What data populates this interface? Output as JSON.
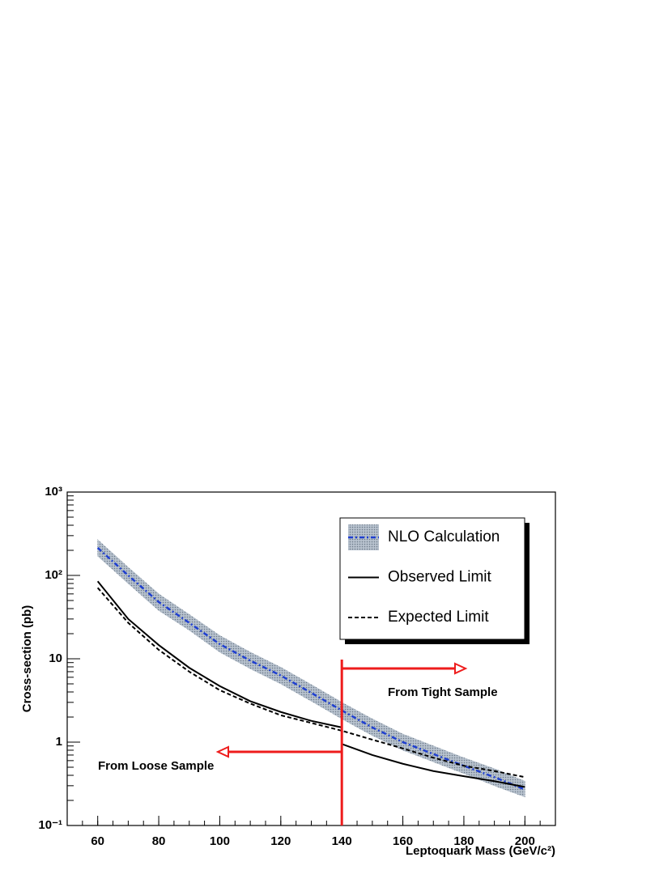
{
  "chart_data": {
    "type": "line",
    "xlabel": "Leptoquark Mass (GeV/c²)",
    "ylabel": "Cross-section (pb)",
    "xlim": [
      50,
      210
    ],
    "ylim": [
      0.1,
      1000
    ],
    "log_y": true,
    "xticks": [
      60,
      80,
      100,
      120,
      140,
      160,
      180,
      200
    ],
    "yticks": [
      {
        "value": 0.1,
        "label": "10⁻¹"
      },
      1,
      10,
      {
        "value": 100,
        "label": "10²"
      },
      {
        "value": 1000,
        "label": "10³"
      }
    ],
    "legend": "top-right",
    "series": [
      {
        "name": "NLO Calculation",
        "color": "#1f3fd0",
        "band_color": "#a9b5c2",
        "x": [
          60,
          70,
          80,
          90,
          100,
          110,
          120,
          130,
          140,
          150,
          160,
          170,
          180,
          190,
          200
        ],
        "values": [
          214,
          100,
          48,
          27,
          15,
          9.5,
          6.3,
          3.9,
          2.4,
          1.5,
          1.0,
          0.72,
          0.52,
          0.38,
          0.27
        ],
        "band_high": [
          268,
          125,
          60,
          34,
          19,
          12,
          7.9,
          4.9,
          3.0,
          1.9,
          1.25,
          0.9,
          0.65,
          0.48,
          0.34
        ],
        "band_low": [
          171,
          80,
          38,
          22,
          12,
          7.6,
          5.0,
          3.1,
          1.9,
          1.2,
          0.8,
          0.58,
          0.42,
          0.3,
          0.22
        ]
      },
      {
        "name": "Observed Limit",
        "color": "#000000",
        "x": [
          60,
          70,
          80,
          90,
          100,
          110,
          120,
          130,
          140,
          140,
          150,
          160,
          170,
          180,
          190,
          200
        ],
        "values": [
          85,
          30,
          14.6,
          7.8,
          4.7,
          3.1,
          2.3,
          1.8,
          1.5,
          0.95,
          0.7,
          0.55,
          0.45,
          0.39,
          0.34,
          0.29
        ]
      },
      {
        "name": "Expected Limit",
        "color": "#000000",
        "dash": "dashed",
        "x": [
          60,
          70,
          80,
          90,
          100,
          110,
          120,
          130,
          140,
          150,
          160,
          170,
          180,
          190,
          200
        ],
        "values": [
          71,
          27,
          12.8,
          7,
          4.2,
          2.9,
          2.1,
          1.7,
          1.37,
          1.07,
          0.84,
          0.65,
          0.52,
          0.45,
          0.38
        ]
      }
    ],
    "threshold": 140,
    "threshold_color": "#ee1c1c",
    "annotations": [
      "From Tight Sample",
      "From Loose Sample"
    ]
  }
}
